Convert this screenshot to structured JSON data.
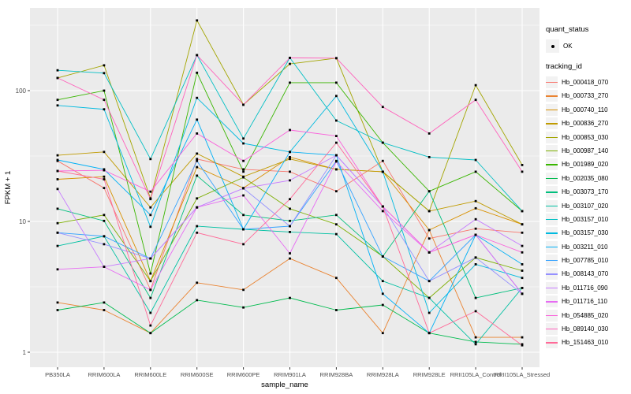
{
  "figure": {
    "ylabel": "FPKM + 1",
    "xlabel": "sample_name"
  },
  "legend": {
    "quant_status_title": "quant_status",
    "quant_status_items": [
      {
        "label": "OK",
        "marker": "black-point"
      }
    ],
    "tracking_title": "tracking_id"
  },
  "colors": {
    "panel_bg": "#EBEBEB",
    "grid": "#FFFFFF",
    "tick_text": "#4D4D4D",
    "axis_title": "#000000",
    "marker": "#000000",
    "legend_key_bg": "#F2F2F2"
  },
  "chart_data": {
    "type": "line",
    "x_type": "categorical",
    "title": "",
    "xlabel": "sample_name",
    "ylabel": "FPKM + 1",
    "yscale": "log10",
    "ylim": [
      0.77,
      430
    ],
    "yticks": [
      1,
      10,
      100
    ],
    "ytick_labels": [
      "1",
      "10",
      "100"
    ],
    "y_minor_ticks": [
      3.162,
      31.62,
      316.2
    ],
    "grid": true,
    "legend_position": "right",
    "point_marker": "small-black-square",
    "categories": [
      "PB350LA",
      "RRIM600LA",
      "RRIM600LE",
      "RRIM600SE",
      "RRIM600PE",
      "RRIM901LA",
      "RRIM928BA",
      "RRIM928LA",
      "RRIM928LE",
      "RRII105LA_Control",
      "RRII105LA_Stressed"
    ],
    "series": [
      {
        "name": "Hb_000418_070",
        "color": "#F8766D",
        "values": [
          29,
          18,
          3.0,
          30,
          25,
          24,
          17,
          29,
          7.4,
          8.8,
          8.2
        ]
      },
      {
        "name": "Hb_000733_270",
        "color": "#EA8331",
        "values": [
          2.4,
          2.1,
          1.4,
          3.4,
          3.0,
          5.2,
          3.7,
          1.4,
          8.6,
          1.3,
          1.3
        ]
      },
      {
        "name": "Hb_000740_110",
        "color": "#D89000",
        "values": [
          21,
          22,
          3.5,
          26,
          18,
          31,
          25,
          24,
          8.6,
          12.6,
          9.5
        ]
      },
      {
        "name": "Hb_000836_270",
        "color": "#C09B00",
        "values": [
          32,
          34,
          12.8,
          33,
          22,
          30,
          25,
          24,
          12,
          14.3,
          9.5
        ]
      },
      {
        "name": "Hb_000853_030",
        "color": "#A3A500",
        "values": [
          125,
          156,
          15,
          344,
          78,
          160,
          177,
          24,
          12,
          110,
          27
        ]
      },
      {
        "name": "Hb_000987_140",
        "color": "#7CAE00",
        "values": [
          9.7,
          11.2,
          3.5,
          15,
          21.7,
          12.5,
          9.5,
          5.4,
          2.6,
          5.3,
          4.2
        ]
      },
      {
        "name": "Hb_001989_020",
        "color": "#39B600",
        "values": [
          85,
          100,
          4.0,
          137,
          24,
          115,
          115,
          40,
          17,
          24,
          12
        ]
      },
      {
        "name": "Hb_002035_080",
        "color": "#00BB4E",
        "values": [
          2.1,
          2.4,
          1.4,
          2.5,
          2.2,
          2.6,
          2.1,
          2.3,
          1.4,
          1.2,
          1.15
        ]
      },
      {
        "name": "Hb_003073_170",
        "color": "#00BF7D",
        "values": [
          12.5,
          10.1,
          2.6,
          22.4,
          11.2,
          10.1,
          11.2,
          5.4,
          17,
          2.6,
          3.1
        ]
      },
      {
        "name": "Hb_003107_020",
        "color": "#00C1A3",
        "values": [
          6.5,
          7.7,
          2.0,
          9.2,
          8.7,
          8.3,
          8.0,
          3.5,
          2.6,
          1.15,
          3.1
        ]
      },
      {
        "name": "Hb_003157_010",
        "color": "#00BFC4",
        "values": [
          143,
          136,
          30,
          187,
          43,
          178,
          59,
          40,
          31,
          29.5,
          12
        ]
      },
      {
        "name": "Hb_003157_030",
        "color": "#00BAE0",
        "values": [
          77,
          72,
          9.1,
          88,
          39.5,
          34,
          91,
          24,
          2.0,
          4.7,
          3.7
        ]
      },
      {
        "name": "Hb_003211_010",
        "color": "#00B0F6",
        "values": [
          29.5,
          25,
          11.2,
          60,
          8.7,
          34,
          32,
          2.8,
          1.4,
          7.9,
          4.7
        ]
      },
      {
        "name": "Hb_007785_010",
        "color": "#35A2FF",
        "values": [
          8.2,
          7.7,
          5.2,
          29,
          8.7,
          9.2,
          29,
          5.4,
          3.5,
          7.9,
          2.8
        ]
      },
      {
        "name": "Hb_008143_070",
        "color": "#9590FF",
        "values": [
          8.2,
          6.7,
          5.2,
          12.8,
          17.9,
          9.2,
          32,
          13,
          3.5,
          5.3,
          2.8
        ]
      },
      {
        "name": "Hb_011716_090",
        "color": "#C77CFF",
        "values": [
          17.7,
          4.5,
          5.2,
          12.8,
          17.9,
          20.6,
          32,
          13,
          5.8,
          10.4,
          6.5
        ]
      },
      {
        "name": "Hb_011716_110",
        "color": "#E76BF3",
        "values": [
          4.3,
          4.5,
          3.0,
          12.8,
          15.8,
          5.7,
          28.7,
          12,
          5.8,
          7.9,
          2.8
        ]
      },
      {
        "name": "Hb_054885_020",
        "color": "#FA62DB",
        "values": [
          24.3,
          24.6,
          16.9,
          47,
          29,
          50,
          45,
          13,
          5.8,
          7.9,
          5.8
        ]
      },
      {
        "name": "Hb_089140_030",
        "color": "#FF62BC",
        "values": [
          125,
          85,
          14.8,
          187,
          78,
          178,
          177,
          75,
          47,
          85,
          24
        ]
      },
      {
        "name": "Hb_151463_010",
        "color": "#FF6A98",
        "values": [
          24.3,
          21,
          1.6,
          8.2,
          6.7,
          14.8,
          40,
          13,
          1.4,
          2.06,
          1.13
        ]
      }
    ]
  }
}
